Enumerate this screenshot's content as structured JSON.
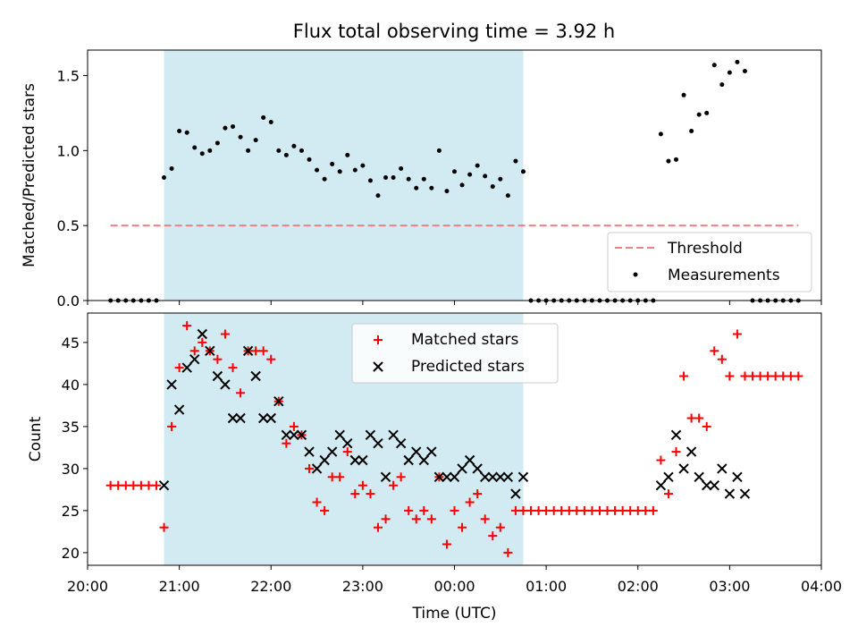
{
  "chart_data": [
    {
      "type": "scatter",
      "title": "Flux total observing time = 3.92 h",
      "xlabel": "",
      "ylabel": "Matched/Predicted stars",
      "xlim": [
        "20:00",
        "04:00"
      ],
      "ylim": [
        0,
        1.67
      ],
      "yticks": [
        0.0,
        0.5,
        1.0,
        1.5
      ],
      "ytick_labels": [
        "0.0",
        "0.5",
        "1.0",
        "1.5"
      ],
      "grid": false,
      "legend_position": "lower-right",
      "shaded_span": {
        "start": "20:50",
        "end": "00:45",
        "color": "#add8e6"
      },
      "threshold": {
        "name": "Threshold",
        "y": 0.5,
        "x_start": "20:15",
        "x_end": "03:45",
        "color": "#f08080"
      },
      "series": [
        {
          "name": "Measurements",
          "marker": "dot",
          "color": "#000000",
          "x": [
            "20:15",
            "20:20",
            "20:25",
            "20:30",
            "20:35",
            "20:40",
            "20:45",
            "20:50",
            "20:55",
            "21:00",
            "21:05",
            "21:10",
            "21:15",
            "21:20",
            "21:25",
            "21:30",
            "21:35",
            "21:40",
            "21:45",
            "21:50",
            "21:55",
            "22:00",
            "22:05",
            "22:10",
            "22:15",
            "22:20",
            "22:25",
            "22:30",
            "22:35",
            "22:40",
            "22:45",
            "22:50",
            "22:55",
            "23:00",
            "23:05",
            "23:10",
            "23:15",
            "23:20",
            "23:25",
            "23:30",
            "23:35",
            "23:40",
            "23:45",
            "23:50",
            "23:55",
            "00:00",
            "00:05",
            "00:10",
            "00:15",
            "00:20",
            "00:25",
            "00:30",
            "00:35",
            "00:40",
            "00:45",
            "00:50",
            "00:55",
            "01:00",
            "01:05",
            "01:10",
            "01:15",
            "01:20",
            "01:25",
            "01:30",
            "01:35",
            "01:40",
            "01:45",
            "01:50",
            "01:55",
            "02:00",
            "02:05",
            "02:10",
            "02:15",
            "02:20",
            "02:25",
            "02:30",
            "02:35",
            "02:40",
            "02:45",
            "02:50",
            "02:55",
            "03:00",
            "03:05",
            "03:10",
            "03:15",
            "03:20",
            "03:25",
            "03:30",
            "03:35",
            "03:40",
            "03:45"
          ],
          "y": [
            0,
            0,
            0,
            0,
            0,
            0,
            0,
            0.82,
            0.88,
            1.13,
            1.12,
            1.02,
            0.98,
            1.0,
            1.05,
            1.15,
            1.16,
            1.09,
            1.0,
            1.07,
            1.22,
            1.19,
            1.0,
            0.97,
            1.03,
            1.0,
            0.94,
            0.87,
            0.81,
            0.91,
            0.86,
            0.97,
            0.87,
            0.9,
            0.8,
            0.7,
            0.82,
            0.82,
            0.88,
            0.81,
            0.75,
            0.81,
            0.75,
            1.0,
            0.73,
            0.86,
            0.77,
            0.84,
            0.9,
            0.83,
            0.76,
            0.81,
            0.7,
            0.93,
            0.86,
            0,
            0,
            0,
            0,
            0,
            0,
            0,
            0,
            0,
            0,
            0,
            0,
            0,
            0,
            0,
            0,
            0,
            1.11,
            0.93,
            0.94,
            1.37,
            1.13,
            1.24,
            1.25,
            1.57,
            1.44,
            1.52,
            1.59,
            1.53,
            0,
            0,
            0,
            0,
            0,
            0,
            0
          ]
        }
      ]
    },
    {
      "type": "scatter",
      "title": "",
      "xlabel": "Time (UTC)",
      "ylabel": "Count",
      "xlim": [
        "20:00",
        "04:00"
      ],
      "xticks": [
        "20:00",
        "21:00",
        "22:00",
        "23:00",
        "00:00",
        "01:00",
        "02:00",
        "03:00",
        "04:00"
      ],
      "ylim": [
        18.5,
        48.5
      ],
      "yticks": [
        20,
        25,
        30,
        35,
        40,
        45
      ],
      "ytick_labels": [
        "20",
        "25",
        "30",
        "35",
        "40",
        "45"
      ],
      "grid": false,
      "legend_position": "upper-center",
      "shaded_span": {
        "start": "20:50",
        "end": "00:45",
        "color": "#add8e6"
      },
      "series": [
        {
          "name": "Matched stars",
          "marker": "plus",
          "color": "#ff0000",
          "x": [
            "20:15",
            "20:20",
            "20:25",
            "20:30",
            "20:35",
            "20:40",
            "20:45",
            "20:50",
            "20:55",
            "21:00",
            "21:05",
            "21:10",
            "21:15",
            "21:20",
            "21:25",
            "21:30",
            "21:35",
            "21:40",
            "21:45",
            "21:50",
            "21:55",
            "22:00",
            "22:05",
            "22:10",
            "22:15",
            "22:20",
            "22:25",
            "22:30",
            "22:35",
            "22:40",
            "22:45",
            "22:50",
            "22:55",
            "23:00",
            "23:05",
            "23:10",
            "23:15",
            "23:20",
            "23:25",
            "23:30",
            "23:35",
            "23:40",
            "23:45",
            "23:50",
            "23:55",
            "00:00",
            "00:05",
            "00:10",
            "00:15",
            "00:20",
            "00:25",
            "00:30",
            "00:35",
            "00:40",
            "00:45",
            "00:50",
            "00:55",
            "01:00",
            "01:05",
            "01:10",
            "01:15",
            "01:20",
            "01:25",
            "01:30",
            "01:35",
            "01:40",
            "01:45",
            "01:50",
            "01:55",
            "02:00",
            "02:05",
            "02:10",
            "02:15",
            "02:20",
            "02:25",
            "02:30",
            "02:35",
            "02:40",
            "02:45",
            "02:50",
            "02:55",
            "03:00",
            "03:05",
            "03:10",
            "03:15",
            "03:20",
            "03:25",
            "03:30",
            "03:35",
            "03:40",
            "03:45"
          ],
          "y": [
            28,
            28,
            28,
            28,
            28,
            28,
            28,
            23,
            35,
            42,
            47,
            44,
            45,
            44,
            43,
            46,
            42,
            39,
            44,
            44,
            44,
            43,
            38,
            33,
            35,
            34,
            30,
            26,
            25,
            29,
            29,
            32,
            27,
            28,
            27,
            23,
            24,
            28,
            29,
            25,
            24,
            25,
            24,
            29,
            21,
            25,
            23,
            26,
            27,
            24,
            22,
            23,
            20,
            25,
            25,
            25,
            25,
            25,
            25,
            25,
            25,
            25,
            25,
            25,
            25,
            25,
            25,
            25,
            25,
            25,
            25,
            25,
            31,
            27,
            32,
            41,
            36,
            36,
            35,
            44,
            43,
            41,
            46,
            41,
            41,
            41,
            41,
            41,
            41,
            41,
            41
          ]
        },
        {
          "name": "Predicted stars",
          "marker": "x",
          "color": "#000000",
          "x": [
            "20:50",
            "20:55",
            "21:00",
            "21:05",
            "21:10",
            "21:15",
            "21:20",
            "21:25",
            "21:30",
            "21:35",
            "21:40",
            "21:45",
            "21:50",
            "21:55",
            "22:00",
            "22:05",
            "22:10",
            "22:15",
            "22:20",
            "22:25",
            "22:30",
            "22:35",
            "22:40",
            "22:45",
            "22:50",
            "22:55",
            "23:00",
            "23:05",
            "23:10",
            "23:15",
            "23:20",
            "23:25",
            "23:30",
            "23:35",
            "23:40",
            "23:45",
            "23:50",
            "23:55",
            "00:00",
            "00:05",
            "00:10",
            "00:15",
            "00:20",
            "00:25",
            "00:30",
            "00:35",
            "00:40",
            "00:45",
            "02:15",
            "02:20",
            "02:25",
            "02:30",
            "02:35",
            "02:40",
            "02:45",
            "02:50",
            "02:55",
            "03:00",
            "03:05",
            "03:10"
          ],
          "y": [
            28,
            40,
            37,
            42,
            43,
            46,
            44,
            41,
            40,
            36,
            36,
            44,
            41,
            36,
            36,
            38,
            34,
            34,
            34,
            32,
            30,
            31,
            32,
            34,
            33,
            31,
            31,
            34,
            33,
            29,
            34,
            33,
            31,
            32,
            31,
            32,
            29,
            29,
            29,
            30,
            31,
            30,
            29,
            29,
            29,
            29,
            27,
            29,
            28,
            29,
            34,
            30,
            32,
            29,
            28,
            28,
            30,
            27,
            29,
            27
          ]
        }
      ]
    }
  ]
}
